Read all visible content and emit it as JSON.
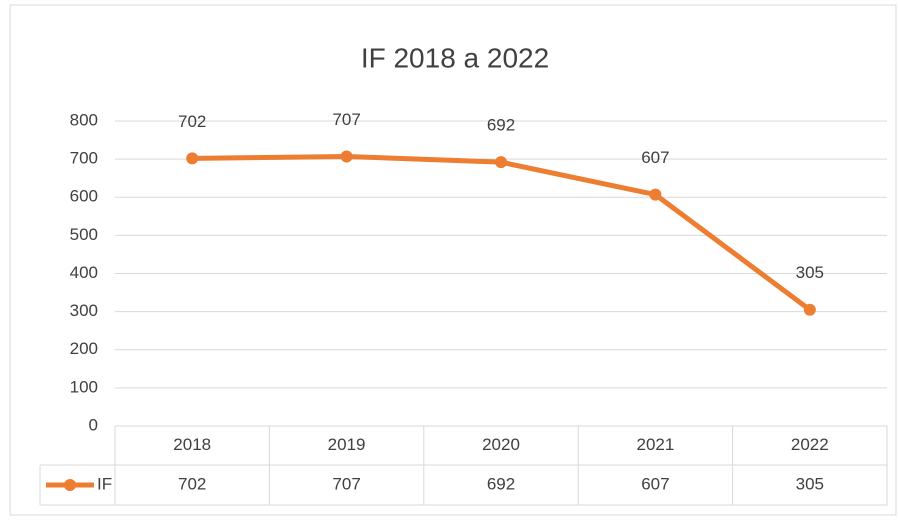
{
  "chart_data": {
    "type": "line",
    "title": "IF 2018 a 2022",
    "categories": [
      "2018",
      "2019",
      "2020",
      "2021",
      "2022"
    ],
    "series": [
      {
        "name": "IF",
        "color": "#ed7d31",
        "values": [
          702,
          707,
          692,
          607,
          305
        ]
      }
    ],
    "ylim": [
      0,
      800
    ],
    "yticks": [
      0,
      100,
      200,
      300,
      400,
      500,
      600,
      700,
      800
    ],
    "grid": true,
    "data_labels": true,
    "data_table": true
  }
}
